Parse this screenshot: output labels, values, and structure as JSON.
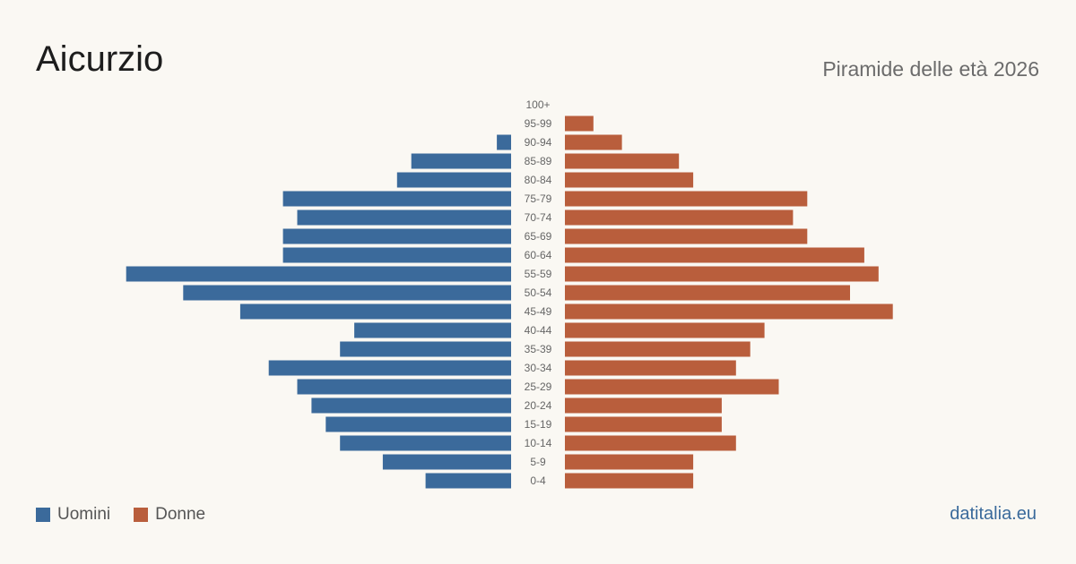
{
  "header": {
    "title": "Aicurzio",
    "subtitle": "Piramide delle età 2026"
  },
  "footer": {
    "source": "datitalia.eu"
  },
  "colors": {
    "men": "#3b6a9b",
    "women": "#b95e3c",
    "label": "#666666"
  },
  "chart_data": {
    "type": "bar",
    "orientation": "horizontal-pyramid",
    "categories": [
      "100+",
      "95-99",
      "90-94",
      "85-89",
      "80-84",
      "75-79",
      "70-74",
      "65-69",
      "60-64",
      "55-59",
      "50-54",
      "45-49",
      "40-44",
      "35-39",
      "30-34",
      "25-29",
      "20-24",
      "15-19",
      "10-14",
      "5-9",
      "0-4"
    ],
    "series": [
      {
        "name": "Uomini",
        "color": "#3b6a9b",
        "values": [
          0,
          0,
          1,
          7,
          8,
          16,
          15,
          16,
          16,
          27,
          23,
          19,
          11,
          12,
          17,
          15,
          14,
          13,
          12,
          9,
          6
        ]
      },
      {
        "name": "Donne",
        "color": "#b95e3c",
        "values": [
          0,
          2,
          4,
          8,
          9,
          17,
          16,
          17,
          21,
          22,
          20,
          23,
          14,
          13,
          12,
          15,
          11,
          11,
          12,
          9,
          9
        ]
      }
    ],
    "legend": [
      "Uomini",
      "Donne"
    ],
    "legend_position": "bottom-left",
    "grid": false
  }
}
